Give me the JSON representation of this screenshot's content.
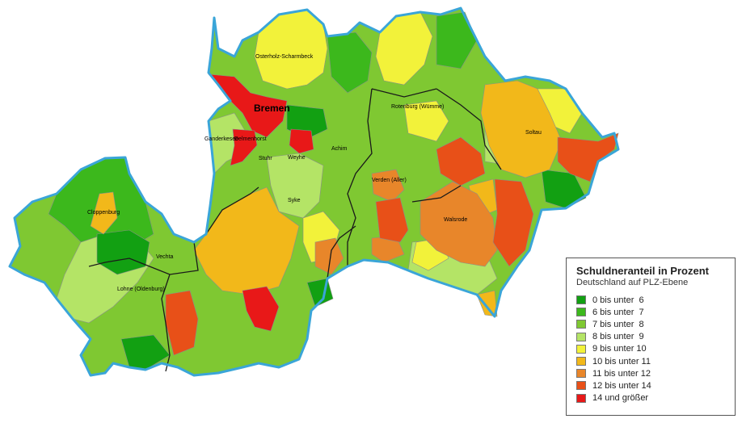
{
  "map": {
    "places": [
      {
        "id": "osterholz",
        "label": "Osterholz-Scharmbeck"
      },
      {
        "id": "bremen",
        "label": "Bremen"
      },
      {
        "id": "rotenburg",
        "label": "Rotenburg (Wümme)"
      },
      {
        "id": "ganderkesee",
        "label": "Ganderkesee"
      },
      {
        "id": "delmenhorst",
        "label": "Delmenhorst"
      },
      {
        "id": "stuhr",
        "label": "Stuhr"
      },
      {
        "id": "weyhe",
        "label": "Weyhe"
      },
      {
        "id": "achim",
        "label": "Achim"
      },
      {
        "id": "soltau",
        "label": "Soltau"
      },
      {
        "id": "cloppenburg",
        "label": "Cloppenburg"
      },
      {
        "id": "syke",
        "label": "Syke"
      },
      {
        "id": "verden",
        "label": "Verden (Aller)"
      },
      {
        "id": "walsrode",
        "label": "Walsrode"
      },
      {
        "id": "vechta",
        "label": "Vechta"
      },
      {
        "id": "lohne",
        "label": "Lohne (Oldenburg)"
      }
    ]
  },
  "legend": {
    "title": "Schuldneranteil in Prozent",
    "subtitle": "Deutschland auf PLZ-Ebene",
    "classes": [
      {
        "label": "0 bis unter  6",
        "color": "#12a012"
      },
      {
        "label": "6 bis unter  7",
        "color": "#3cb81c"
      },
      {
        "label": "7 bis unter  8",
        "color": "#7fc832"
      },
      {
        "label": "8 bis unter  9",
        "color": "#b4e466"
      },
      {
        "label": "9 bis unter 10",
        "color": "#f2f23a"
      },
      {
        "label": "10 bis unter 11",
        "color": "#f2b81a"
      },
      {
        "label": "11 bis unter 12",
        "color": "#e8862a"
      },
      {
        "label": "12 bis unter 14",
        "color": "#e85018"
      },
      {
        "label": "14 und größer",
        "color": "#e81818"
      }
    ]
  }
}
